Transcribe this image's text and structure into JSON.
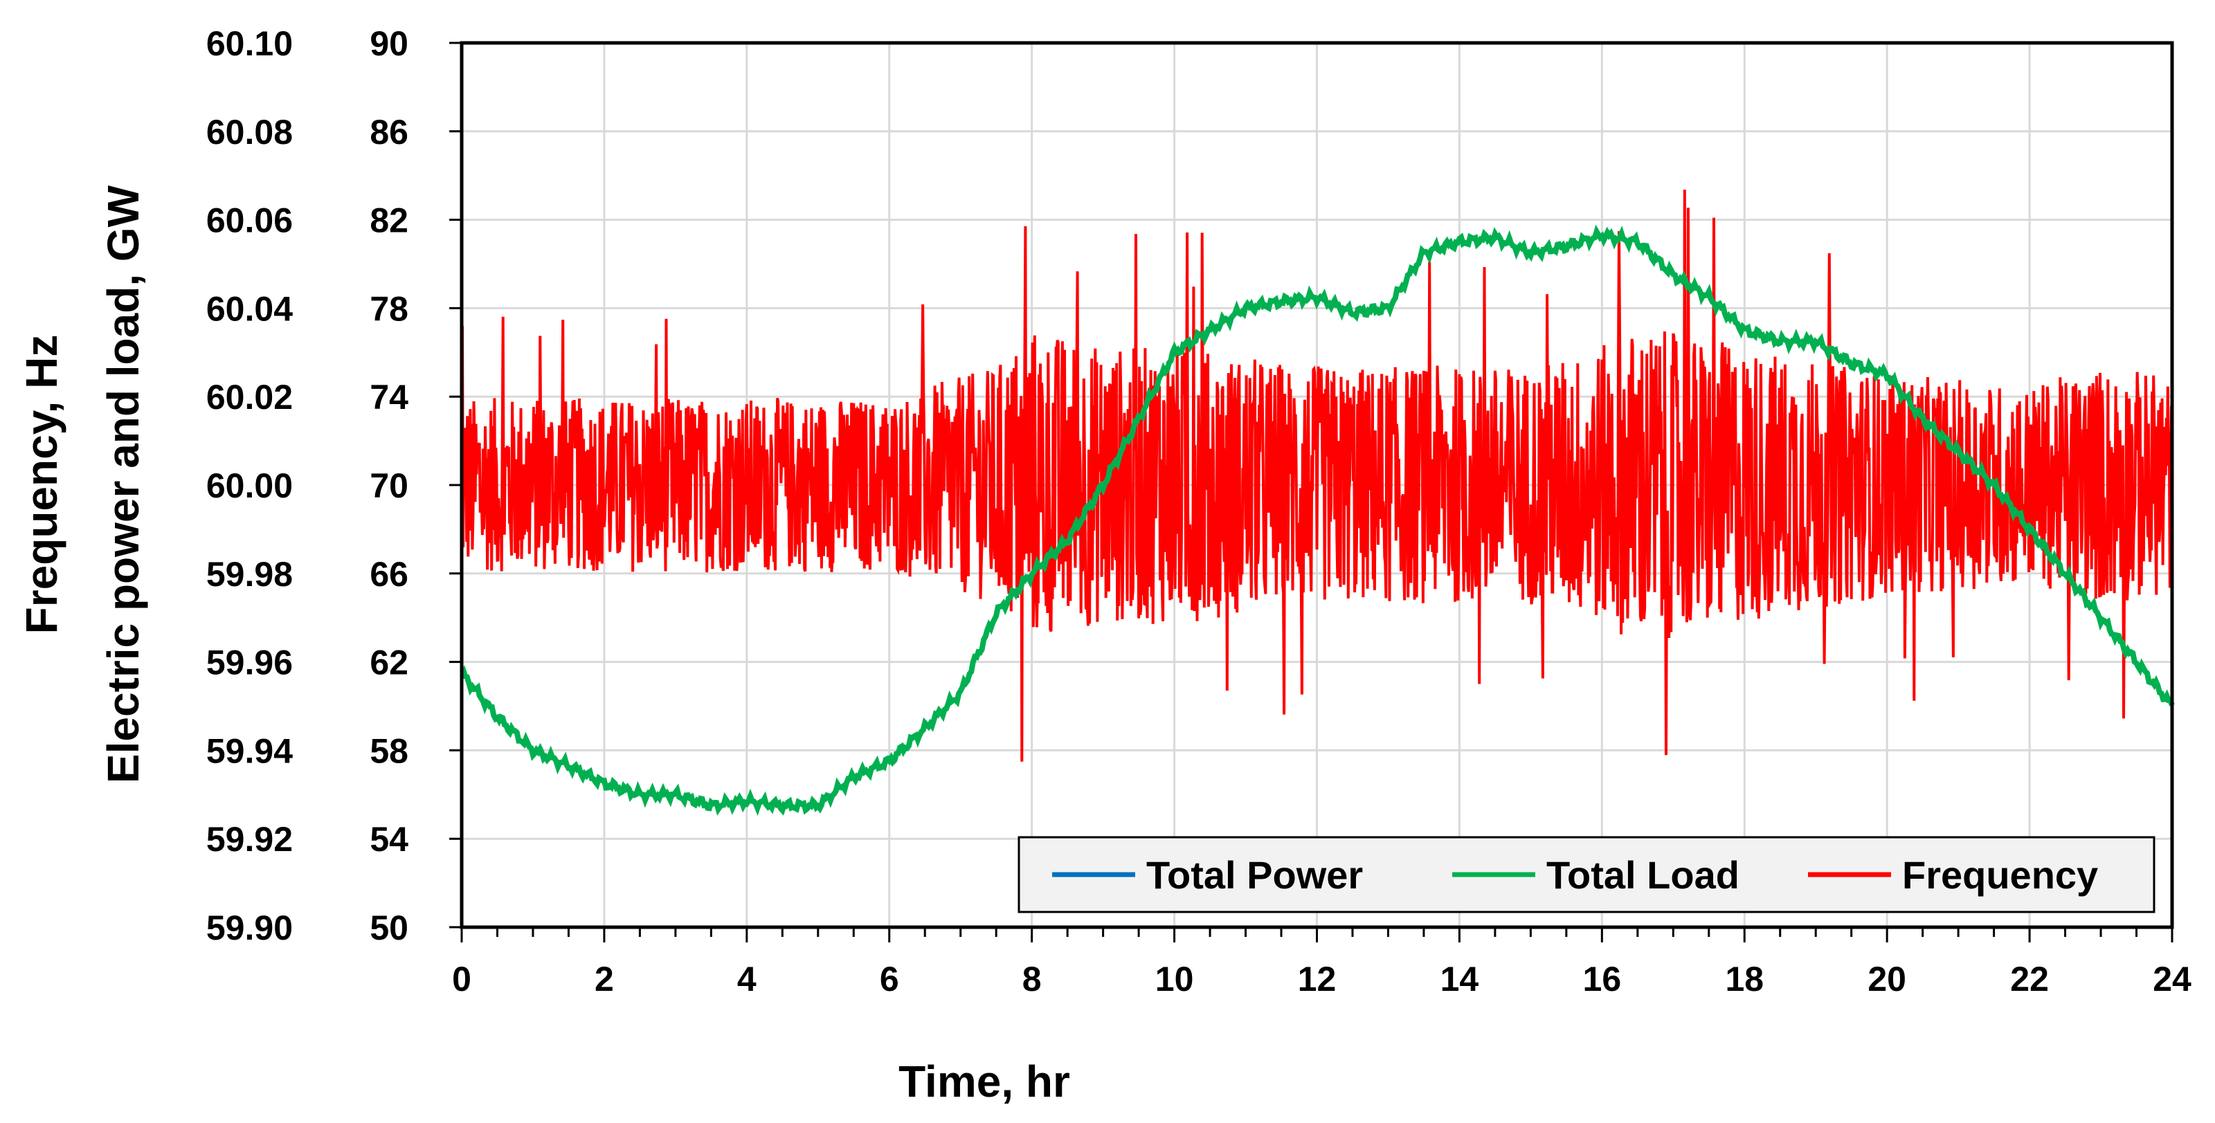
{
  "chart_data": {
    "type": "line",
    "xlabel": "Time, hr",
    "ylabel_left_outer": "Frequency, Hz",
    "ylabel_left_inner": "Electric power and load, GW",
    "x_range": [
      0,
      24
    ],
    "x_ticks": [
      "0",
      "2",
      "4",
      "6",
      "8",
      "10",
      "12",
      "14",
      "16",
      "18",
      "20",
      "22",
      "24"
    ],
    "y_frequency_range": [
      59.9,
      60.1
    ],
    "y_frequency_ticks": [
      "60.10",
      "60.08",
      "60.06",
      "60.04",
      "60.02",
      "60.00",
      "59.98",
      "59.96",
      "59.94",
      "59.92",
      "59.90"
    ],
    "y_power_range": [
      50,
      90
    ],
    "y_power_ticks": [
      "90",
      "86",
      "82",
      "78",
      "74",
      "70",
      "66",
      "62",
      "58",
      "54",
      "50"
    ],
    "grid": true,
    "legend_position": "bottom-right",
    "series": [
      {
        "name": "Total Power",
        "color": "#0070C0",
        "axis": "power",
        "x": [
          0,
          0.5,
          1,
          1.5,
          2,
          2.5,
          3,
          3.5,
          4,
          4.5,
          5,
          5.5,
          6,
          6.5,
          7,
          7.5,
          8,
          8.5,
          9,
          9.5,
          10,
          10.5,
          11,
          11.5,
          12,
          12.5,
          13,
          13.5,
          14,
          14.5,
          15,
          15.5,
          16,
          16.5,
          17,
          17.5,
          18,
          18.5,
          19,
          19.5,
          20,
          20.5,
          21,
          21.5,
          22,
          22.5,
          23,
          23.5,
          24
        ],
        "y": [
          61.5,
          59.5,
          58.0,
          57.3,
          56.5,
          56.0,
          56.0,
          55.5,
          55.7,
          55.5,
          55.5,
          56.8,
          57.5,
          59.0,
          60.6,
          64.2,
          66.0,
          67.5,
          70.0,
          73.0,
          76.0,
          77.0,
          78.0,
          78.3,
          78.5,
          77.8,
          78.0,
          80.5,
          81.0,
          81.2,
          80.5,
          80.8,
          81.3,
          81.0,
          79.5,
          78.5,
          77.0,
          76.5,
          76.5,
          75.5,
          75.0,
          73.0,
          71.5,
          70.0,
          68.0,
          66.0,
          64.0,
          62.0,
          60.0
        ]
      },
      {
        "name": "Total Load",
        "color": "#00B050",
        "axis": "power",
        "x": [
          0,
          0.5,
          1,
          1.5,
          2,
          2.5,
          3,
          3.5,
          4,
          4.5,
          5,
          5.5,
          6,
          6.5,
          7,
          7.5,
          8,
          8.5,
          9,
          9.5,
          10,
          10.5,
          11,
          11.5,
          12,
          12.5,
          13,
          13.5,
          14,
          14.5,
          15,
          15.5,
          16,
          16.5,
          17,
          17.5,
          18,
          18.5,
          19,
          19.5,
          20,
          20.5,
          21,
          21.5,
          22,
          22.5,
          23,
          23.5,
          24
        ],
        "y": [
          61.5,
          59.5,
          58.0,
          57.3,
          56.5,
          56.0,
          56.0,
          55.5,
          55.7,
          55.5,
          55.5,
          56.8,
          57.5,
          59.0,
          60.6,
          64.2,
          66.0,
          67.5,
          70.0,
          73.0,
          76.0,
          77.0,
          78.0,
          78.3,
          78.5,
          77.8,
          78.0,
          80.5,
          81.0,
          81.2,
          80.5,
          80.8,
          81.3,
          81.0,
          79.5,
          78.5,
          77.0,
          76.5,
          76.5,
          75.5,
          75.0,
          73.0,
          71.5,
          70.0,
          68.0,
          66.0,
          64.0,
          62.0,
          60.0
        ]
      },
      {
        "name": "Frequency",
        "color": "#FF0000",
        "axis": "frequency",
        "description_of_behavior": "high-frequency oscillation around 60.00 Hz",
        "center": 60.0,
        "envelope_x": [
          0,
          2,
          4,
          6,
          7.5,
          8,
          9,
          10,
          12,
          14,
          15,
          16,
          16.5,
          18,
          20,
          22,
          23,
          24
        ],
        "envelope_half_width": [
          0.022,
          0.022,
          0.022,
          0.022,
          0.03,
          0.04,
          0.035,
          0.035,
          0.03,
          0.03,
          0.03,
          0.035,
          0.04,
          0.035,
          0.028,
          0.025,
          0.03,
          0.028
        ]
      }
    ]
  },
  "legend": {
    "items": [
      {
        "label": "Total Power",
        "color": "#0070C0"
      },
      {
        "label": "Total Load",
        "color": "#00B050"
      },
      {
        "label": "Frequency",
        "color": "#FF0000"
      }
    ]
  }
}
